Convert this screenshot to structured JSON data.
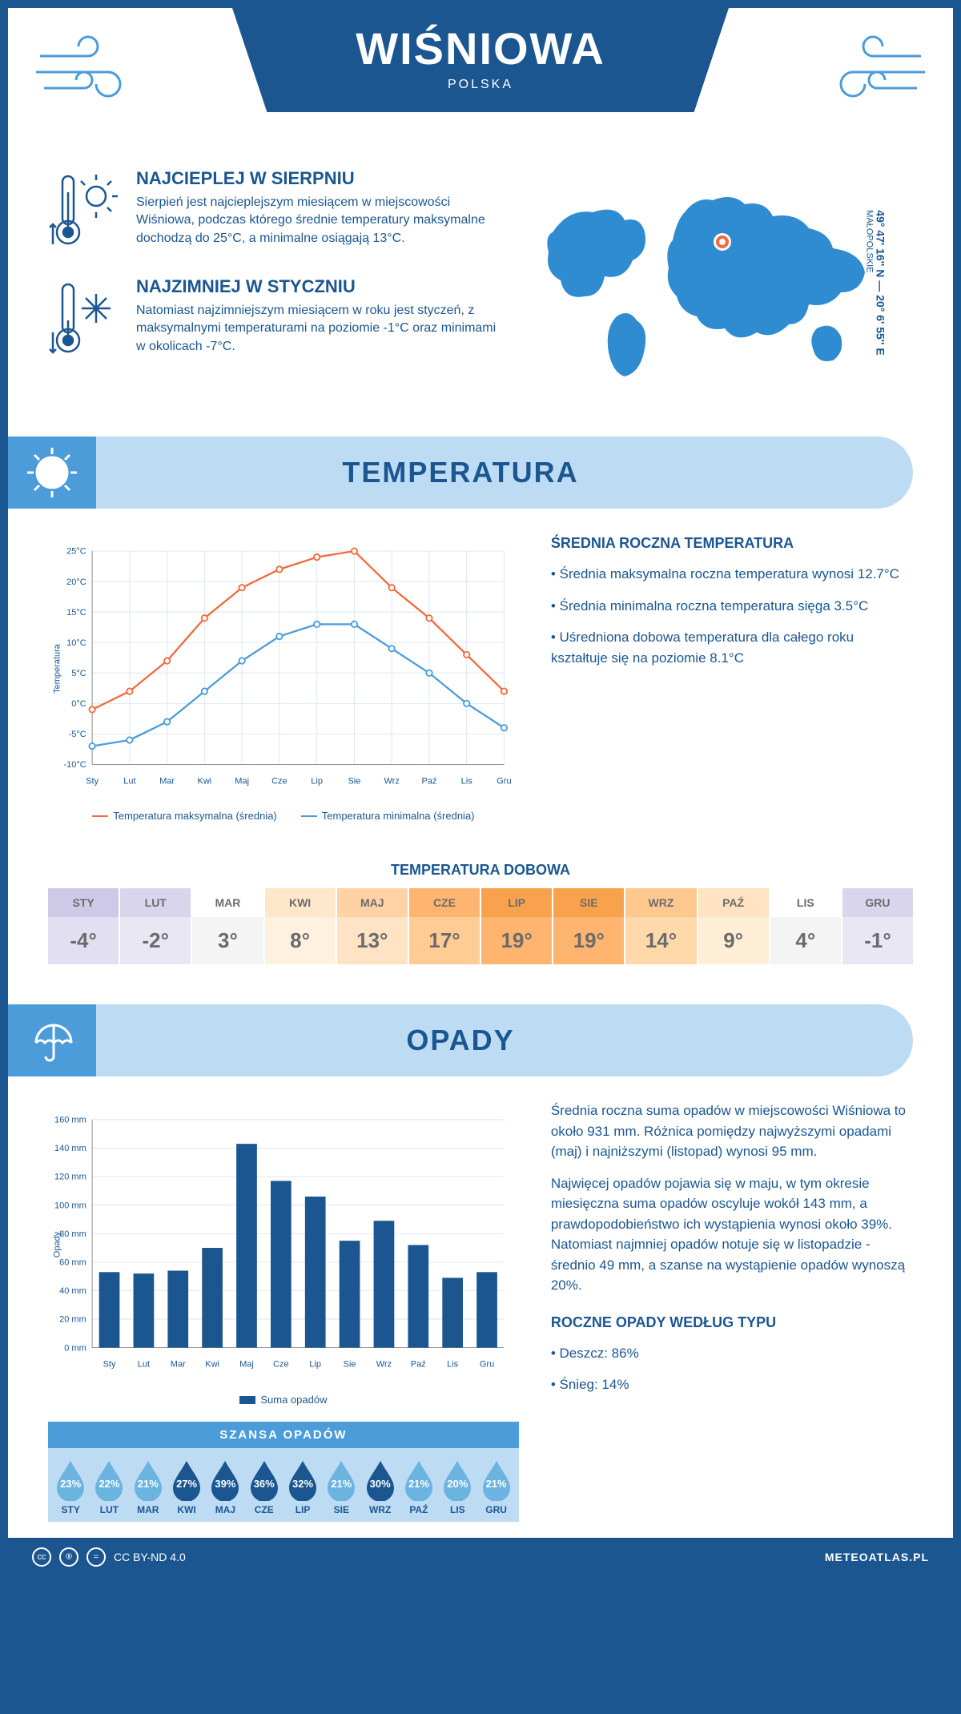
{
  "header": {
    "title": "WIŚNIOWA",
    "subtitle": "POLSKA"
  },
  "coords": {
    "lat": "49° 47' 16'' N",
    "lon": "20° 6' 55'' E",
    "region": "MAŁOPOLSKIE"
  },
  "intro": {
    "hot": {
      "title": "NAJCIEPLEJ W SIERPNIU",
      "body": "Sierpień jest najcieplejszym miesiącem w miejscowości Wiśniowa, podczas którego średnie temperatury maksymalne dochodzą do 25°C, a minimalne osiągają 13°C."
    },
    "cold": {
      "title": "NAJZIMNIEJ W STYCZNIU",
      "body": "Natomiast najzimniejszym miesiącem w roku jest styczeń, z maksymalnymi temperaturami na poziomie -1°C oraz minimami w okolicach -7°C."
    }
  },
  "colors": {
    "brand": "#1b5691",
    "light": "#bedbf4",
    "mid": "#4b9cd9",
    "line_max": "#f26a3b",
    "line_min": "#4b9cd9",
    "grid": "#d9e6f2",
    "bar": "#1b5691"
  },
  "months_short": [
    "Sty",
    "Lut",
    "Mar",
    "Kwi",
    "Maj",
    "Cze",
    "Lip",
    "Sie",
    "Wrz",
    "Paź",
    "Lis",
    "Gru"
  ],
  "months_upper": [
    "STY",
    "LUT",
    "MAR",
    "KWI",
    "MAJ",
    "CZE",
    "LIP",
    "SIE",
    "WRZ",
    "PAŹ",
    "LIS",
    "GRU"
  ],
  "temperature": {
    "section_title": "TEMPERATURA",
    "ylabel": "Temperatura",
    "ylim": [
      -10,
      25
    ],
    "ytick_step": 5,
    "max_series": [
      -1,
      2,
      7,
      14,
      19,
      22,
      24,
      25,
      19,
      14,
      8,
      2
    ],
    "min_series": [
      -7,
      -6,
      -3,
      2,
      7,
      11,
      13,
      13,
      9,
      5,
      0,
      -4
    ],
    "legend_max": "Temperatura maksymalna (średnia)",
    "legend_min": "Temperatura minimalna (średnia)",
    "side_title": "ŚREDNIA ROCZNA TEMPERATURA",
    "side_points": [
      "• Średnia maksymalna roczna temperatura wynosi 12.7°C",
      "• Średnia minimalna roczna temperatura sięga 3.5°C",
      "• Uśredniona dobowa temperatura dla całego roku kształtuje się na poziomie 8.1°C"
    ]
  },
  "daily": {
    "title": "TEMPERATURA DOBOWA",
    "values": [
      "-4°",
      "-2°",
      "3°",
      "8°",
      "13°",
      "17°",
      "19°",
      "19°",
      "14°",
      "9°",
      "4°",
      "-1°"
    ],
    "bg_header": [
      "#cfc9e8",
      "#d9d5ed",
      "#ffffff",
      "#ffe7cc",
      "#ffd2a6",
      "#ffb570",
      "#f9a24d",
      "#f9a24d",
      "#ffc88f",
      "#ffe3c2",
      "#ffffff",
      "#d9d5ed"
    ],
    "bg_value": [
      "#e3dff2",
      "#eae7f4",
      "#f4f4f4",
      "#fff1e0",
      "#ffe3c4",
      "#ffcc94",
      "#ffb570",
      "#ffb570",
      "#ffd9aa",
      "#ffeed6",
      "#f4f4f4",
      "#eae7f4"
    ],
    "text_color": "#6b6b6b"
  },
  "precip": {
    "section_title": "OPADY",
    "ylabel": "Opady",
    "ylim": [
      0,
      160
    ],
    "ytick_step": 20,
    "values": [
      53,
      52,
      54,
      70,
      143,
      117,
      106,
      75,
      89,
      72,
      49,
      53
    ],
    "legend": "Suma opadów",
    "side_p1": "Średnia roczna suma opadów w miejscowości Wiśniowa to około 931 mm. Różnica pomiędzy najwyższymi opadami (maj) i najniższymi (listopad) wynosi 95 mm.",
    "side_p2": "Najwięcej opadów pojawia się w maju, w tym okresie miesięczna suma opadów oscyluje wokół 143 mm, a prawdopodobieństwo ich wystąpienia wynosi około 39%. Natomiast najmniej opadów notuje się w listopadzie - średnio 49 mm, a szanse na wystąpienie opadów wynoszą 20%."
  },
  "chance": {
    "title": "SZANSA OPADÓW",
    "values": [
      23,
      22,
      21,
      27,
      39,
      36,
      32,
      21,
      30,
      21,
      20,
      21
    ],
    "drop_light": "#6bb4e0",
    "drop_dark": "#1b5691",
    "dark_indices": [
      3,
      4,
      5,
      6,
      8
    ]
  },
  "types": {
    "title": "ROCZNE OPADY WEDŁUG TYPU",
    "lines": [
      "• Deszcz: 86%",
      "• Śnieg: 14%"
    ]
  },
  "footer": {
    "license": "CC BY-ND 4.0",
    "site": "METEOATLAS.PL"
  }
}
